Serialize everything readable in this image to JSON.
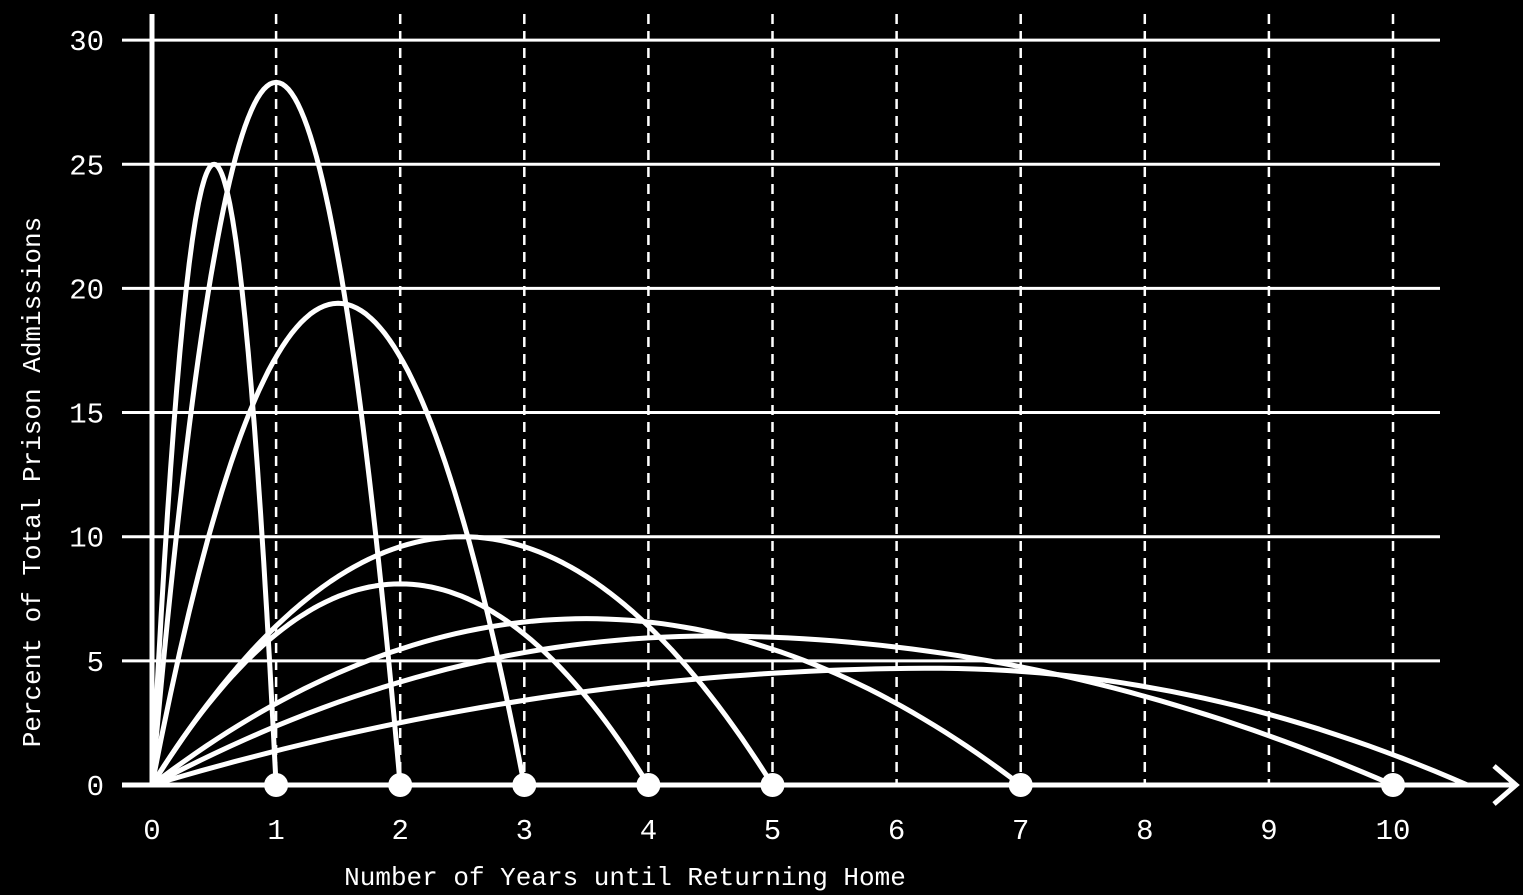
{
  "chart_data": {
    "type": "line",
    "title": "",
    "xlabel": "Number of Years until Returning Home",
    "ylabel": "Percent of Total Prison Admissions",
    "xlim": [
      0,
      10.4
    ],
    "ylim": [
      0,
      30
    ],
    "x_ticks": [
      0,
      1,
      2,
      3,
      4,
      5,
      6,
      7,
      8,
      9,
      10
    ],
    "y_ticks": [
      0,
      5,
      10,
      15,
      20,
      25,
      30
    ],
    "grid": {
      "horizontal": "solid",
      "vertical": "dashed"
    },
    "legend": "none",
    "colors": {
      "background": "#000000",
      "foreground": "#ffffff"
    },
    "endpoint_markers_x": [
      1,
      2,
      3,
      4,
      5,
      7,
      10
    ],
    "series": [
      {
        "peak_x": 0.5,
        "peak_y": 25.0,
        "end_x": 1
      },
      {
        "peak_x": 1.0,
        "peak_y": 28.3,
        "end_x": 2
      },
      {
        "peak_x": 1.5,
        "peak_y": 19.4,
        "end_x": 3
      },
      {
        "peak_x": 2.0,
        "peak_y": 8.1,
        "end_x": 4
      },
      {
        "peak_x": 2.5,
        "peak_y": 10.0,
        "end_x": 5
      },
      {
        "peak_x": 3.5,
        "peak_y": 6.7,
        "end_x": 7
      },
      {
        "peak_x": 4.5,
        "peak_y": 6.0,
        "end_x": 10
      },
      {
        "peak_x": 6.3,
        "peak_y": 4.7,
        "end_x": 10.6
      }
    ]
  }
}
